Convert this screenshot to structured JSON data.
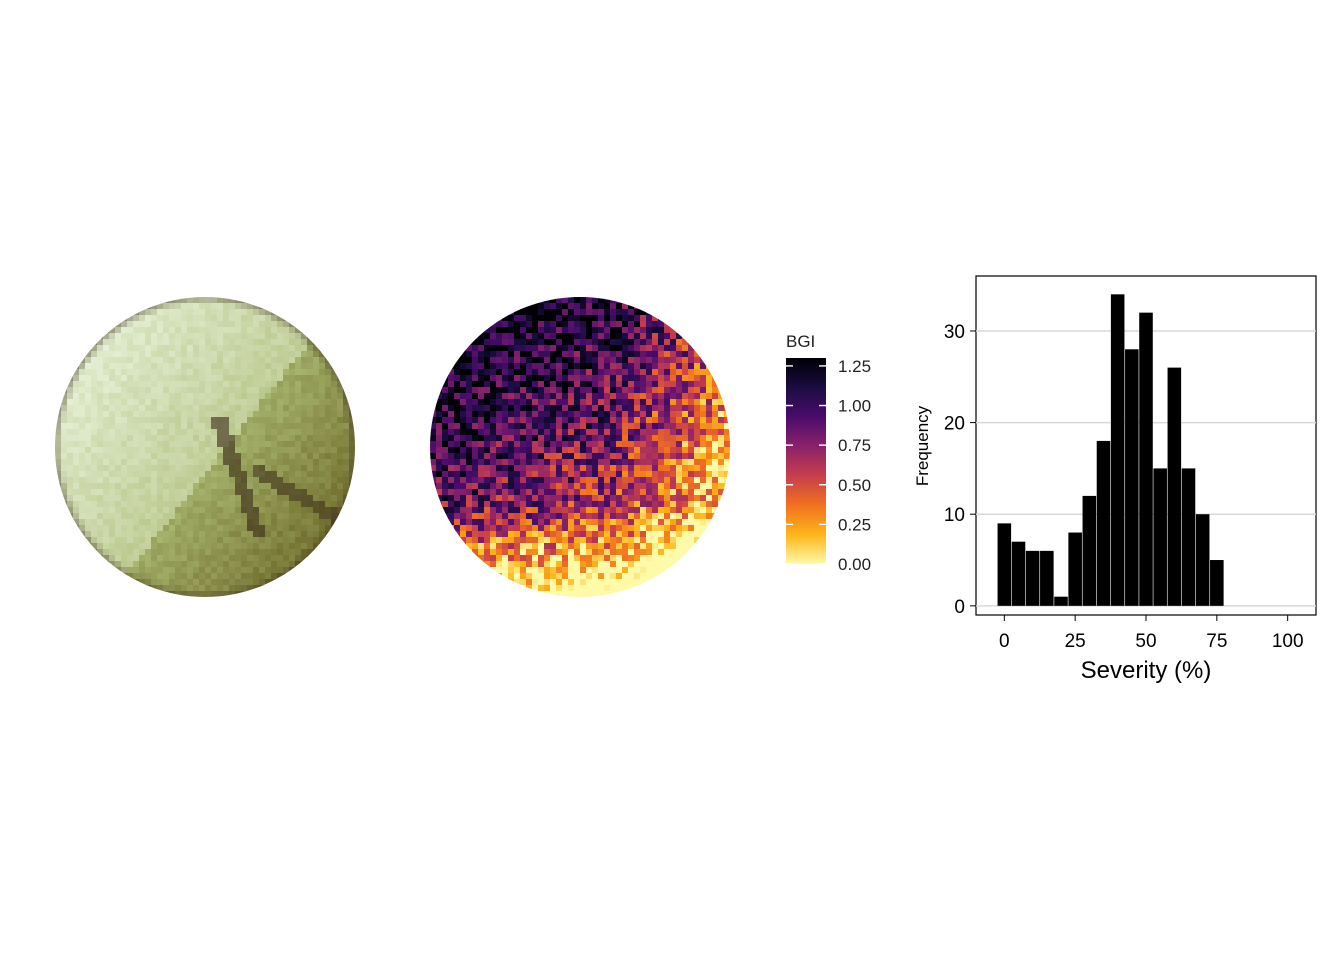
{
  "rgb_panel": {
    "palette": {
      "light": "#e6f0d6",
      "mid": "#a9b870",
      "dark": "#6e6a2a",
      "shadow": "#3a2a18"
    }
  },
  "bgi_panel": {
    "legend": {
      "title": "BGI",
      "ticks": [
        "1.25",
        "1.00",
        "0.75",
        "0.50",
        "0.25",
        "0.00"
      ],
      "tick_values": [
        1.25,
        1.0,
        0.75,
        0.5,
        0.25,
        0.0
      ],
      "range": [
        0,
        1.3
      ],
      "colormap": "inferno (reversed)",
      "colors": [
        "#fffaa8",
        "#fcb519",
        "#f1711f",
        "#c73e4c",
        "#8a226a",
        "#4a0c6b",
        "#1b0c41",
        "#000004"
      ]
    }
  },
  "chart_data": {
    "type": "bar",
    "xlabel": "Severity (%)",
    "ylabel": "Frequency",
    "x_ticks": [
      "0",
      "25",
      "50",
      "75",
      "100"
    ],
    "y_ticks": [
      "0",
      "10",
      "20",
      "30"
    ],
    "xlim": [
      -10,
      110
    ],
    "ylim": [
      -1,
      36
    ],
    "grid": true,
    "bin_width": 5,
    "bar_color": "#000000",
    "grid_color": "#d9d9d9",
    "bins": [
      0,
      5,
      10,
      15,
      20,
      25,
      30,
      35,
      40,
      45,
      50,
      55,
      60,
      65,
      70,
      75,
      80,
      85
    ],
    "values": [
      9,
      7,
      6,
      6,
      1,
      8,
      12,
      18,
      34,
      28,
      32,
      15,
      26,
      15,
      10,
      5,
      0,
      0
    ]
  }
}
